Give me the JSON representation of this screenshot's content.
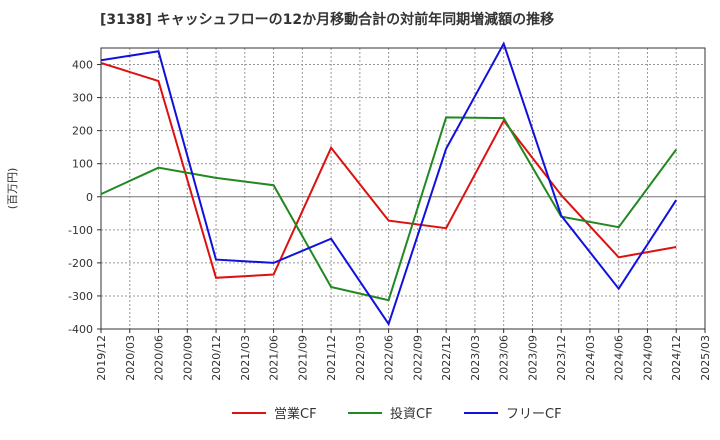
{
  "chart_data": {
    "type": "line",
    "title": "[3138]  キャッシュフローの12か月移動合計の対前年同期増減額の推移",
    "ylabel": "(百万円)",
    "xlabel": "",
    "ylim": [
      -400,
      450
    ],
    "yticks": [
      -400,
      -300,
      -200,
      -100,
      0,
      100,
      200,
      300,
      400
    ],
    "x_labels": [
      "2019/12",
      "2020/03",
      "2020/06",
      "2020/09",
      "2020/12",
      "2021/03",
      "2021/06",
      "2021/09",
      "2021/12",
      "2022/03",
      "2022/06",
      "2022/09",
      "2022/12",
      "2023/03",
      "2023/06",
      "2023/09",
      "2023/12",
      "2024/03",
      "2024/06",
      "2024/09",
      "2024/12",
      "2025/03"
    ],
    "series": [
      {
        "name": "営業CF",
        "color": "#dd1111",
        "points": [
          [
            0,
            405
          ],
          [
            2,
            350
          ],
          [
            4,
            -245
          ],
          [
            6,
            -235
          ],
          [
            8,
            148
          ],
          [
            10,
            -72
          ],
          [
            12,
            -95
          ],
          [
            14,
            230
          ],
          [
            16,
            5
          ],
          [
            18,
            -183
          ],
          [
            20,
            -152
          ]
        ]
      },
      {
        "name": "投資CF",
        "color": "#228822",
        "points": [
          [
            0,
            8
          ],
          [
            2,
            88
          ],
          [
            4,
            57
          ],
          [
            6,
            35
          ],
          [
            8,
            -273
          ],
          [
            10,
            -313
          ],
          [
            12,
            240
          ],
          [
            14,
            238
          ],
          [
            16,
            -60
          ],
          [
            18,
            -92
          ],
          [
            20,
            143
          ]
        ]
      },
      {
        "name": "フリーCF",
        "color": "#1111dd",
        "points": [
          [
            0,
            413
          ],
          [
            2,
            440
          ],
          [
            4,
            -190
          ],
          [
            6,
            -200
          ],
          [
            8,
            -127
          ],
          [
            10,
            -385
          ],
          [
            12,
            145
          ],
          [
            14,
            463
          ],
          [
            16,
            -57
          ],
          [
            18,
            -278
          ],
          [
            20,
            -10
          ]
        ]
      }
    ]
  }
}
